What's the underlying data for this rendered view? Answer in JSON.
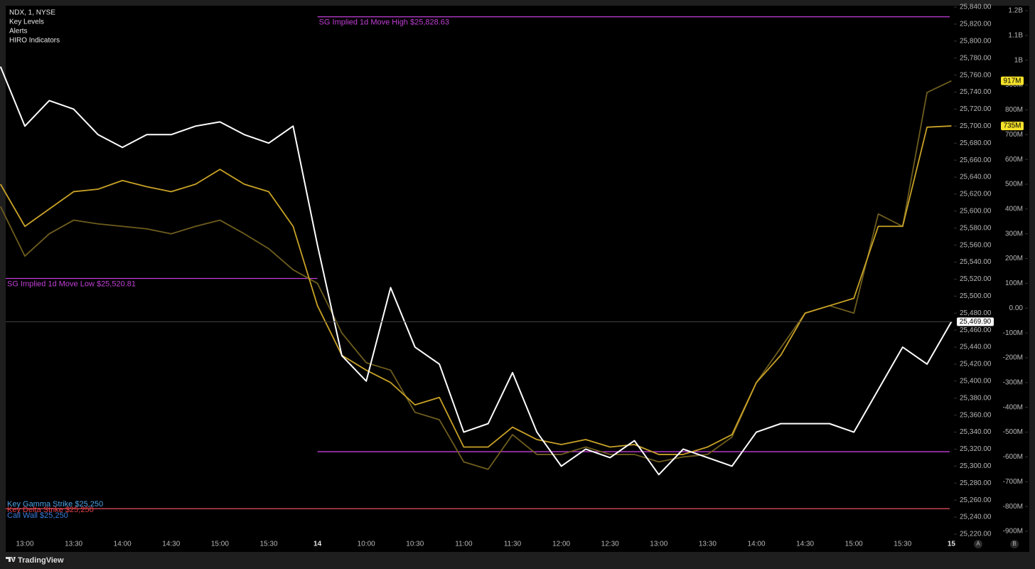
{
  "chart_data": {
    "type": "line",
    "legend_lines": [
      "NDX, 1, NYSE",
      "Key Levels",
      "Alerts",
      "HIRO Indicators"
    ],
    "categories": [
      null,
      "13:00",
      null,
      "13:30",
      null,
      "14:00",
      null,
      "14:30",
      null,
      "15:00",
      null,
      "15:30",
      null,
      "14",
      null,
      "10:00",
      null,
      "10:30",
      null,
      "11:00",
      null,
      "11:30",
      null,
      "12:00",
      null,
      "12:30",
      null,
      "13:00",
      null,
      "13:30",
      null,
      "14:00",
      null,
      "14:30",
      null,
      "15:00",
      null,
      "15:30",
      null,
      "15"
    ],
    "series": [
      {
        "color": "#ffffff",
        "values": [
          25770,
          25700,
          25730,
          25720,
          25690,
          25675,
          25690,
          25690,
          25700,
          25705,
          25690,
          25680,
          25700,
          25560,
          25430,
          25400,
          25510,
          25440,
          25420,
          25340,
          25350,
          25410,
          25340,
          25300,
          25320,
          25310,
          25330,
          25290,
          25320,
          25310,
          25300,
          25340,
          25350,
          25350,
          25350,
          25340,
          25390,
          25440,
          25420,
          25469.9
        ],
        "value_labels": [
          null,
          null,
          null,
          null,
          null,
          null,
          null,
          null,
          null,
          null,
          null,
          null,
          null,
          null,
          null,
          null,
          null,
          null,
          null,
          null,
          null,
          null,
          null,
          null,
          null,
          null,
          null,
          null,
          null,
          null,
          null,
          null,
          null,
          null,
          null,
          null,
          null,
          null,
          null,
          "25,469.90"
        ]
      },
      {
        "color": "#c9a227",
        "axis": "y2",
        "values": [
          500,
          330,
          400,
          470,
          480,
          515,
          490,
          470,
          500,
          560,
          500,
          470,
          330,
          10,
          -190,
          -250,
          -300,
          -390,
          -360,
          -560,
          -560,
          -480,
          -530,
          -550,
          -530,
          -560,
          -550,
          -590,
          -590,
          -560,
          -510,
          -300,
          -190,
          -20,
          10,
          40,
          330,
          330,
          730,
          735
        ],
        "value_labels": [
          null,
          null,
          null,
          null,
          null,
          null,
          null,
          null,
          null,
          null,
          null,
          null,
          null,
          null,
          null,
          null,
          null,
          null,
          null,
          null,
          null,
          null,
          null,
          null,
          null,
          null,
          null,
          null,
          null,
          null,
          null,
          null,
          null,
          null,
          null,
          null,
          null,
          null,
          null,
          "735M"
        ]
      },
      {
        "color": "#6e5d1e",
        "axis": "y2",
        "values": [
          410,
          210,
          300,
          355,
          340,
          330,
          320,
          300,
          330,
          355,
          300,
          240,
          155,
          100,
          -100,
          -220,
          -250,
          -420,
          -450,
          -620,
          -650,
          -510,
          -590,
          -590,
          -560,
          -590,
          -590,
          -620,
          -600,
          -590,
          -520,
          -300,
          -160,
          -20,
          10,
          -20,
          380,
          330,
          870,
          917
        ],
        "value_labels": [
          null,
          null,
          null,
          null,
          null,
          null,
          null,
          null,
          null,
          null,
          null,
          null,
          null,
          null,
          null,
          null,
          null,
          null,
          null,
          null,
          null,
          null,
          null,
          null,
          null,
          null,
          null,
          null,
          null,
          null,
          null,
          null,
          null,
          null,
          null,
          null,
          null,
          null,
          null,
          "917M"
        ]
      }
    ],
    "levels": [
      {
        "value": 25828.63,
        "label": "SG Implied 1d Move High $25,828.63",
        "color": "#c13fd6",
        "from": 13,
        "to": 39
      },
      {
        "value": 25520.81,
        "label": "SG Implied 1d Move Low $25,520.81",
        "color": "#c13fd6",
        "from": 0,
        "to": 13
      },
      {
        "value": 25317,
        "color": "#c13fd6",
        "from": 13,
        "to": 39
      },
      {
        "value": 25250,
        "label": "Key Gamma Strike $25,250",
        "color": "#4aa3e8",
        "from": 0,
        "to": 39
      },
      {
        "value": 25250,
        "label": "Key Delta Strike $25,250",
        "color": "#e0404a",
        "from": 0,
        "to": 39
      },
      {
        "value": 25250,
        "label": "Call Wall $25,250",
        "color": "#3b7ddd"
      }
    ],
    "ylim": [
      25220,
      25840
    ],
    "yticks": [
      {
        "value": 25840,
        "label": "25,840.00"
      },
      {
        "value": 25820,
        "label": "25,820.00"
      },
      {
        "value": 25800,
        "label": "25,800.00"
      },
      {
        "value": 25780,
        "label": "25,780.00"
      },
      {
        "value": 25760,
        "label": "25,760.00"
      },
      {
        "value": 25740,
        "label": "25,740.00"
      },
      {
        "value": 25720,
        "label": "25,720.00"
      },
      {
        "value": 25700,
        "label": "25,700.00"
      },
      {
        "value": 25680,
        "label": "25,680.00"
      },
      {
        "value": 25660,
        "label": "25,660.00"
      },
      {
        "value": 25640,
        "label": "25,640.00"
      },
      {
        "value": 25620,
        "label": "25,620.00"
      },
      {
        "value": 25600,
        "label": "25,600.00"
      },
      {
        "value": 25580,
        "label": "25,580.00"
      },
      {
        "value": 25560,
        "label": "25,560.00"
      },
      {
        "value": 25540,
        "label": "25,540.00"
      },
      {
        "value": 25520,
        "label": "25,520.00"
      },
      {
        "value": 25500,
        "label": "25,500.00"
      },
      {
        "value": 25480,
        "label": "25,480.00"
      },
      {
        "value": 25460,
        "label": "25,460.00"
      },
      {
        "value": 25440,
        "label": "25,440.00"
      },
      {
        "value": 25420,
        "label": "25,420.00"
      },
      {
        "value": 25400,
        "label": "25,400.00"
      },
      {
        "value": 25380,
        "label": "25,380.00"
      },
      {
        "value": 25360,
        "label": "25,360.00"
      },
      {
        "value": 25340,
        "label": "25,340.00"
      },
      {
        "value": 25320,
        "label": "25,320.00"
      },
      {
        "value": 25300,
        "label": "25,300.00"
      },
      {
        "value": 25280,
        "label": "25,280.00"
      },
      {
        "value": 25260,
        "label": "25,260.00"
      },
      {
        "value": 25240,
        "label": "25,240.00"
      },
      {
        "value": 25220,
        "label": "25,220.00"
      }
    ],
    "y2lim": [
      -900,
      1200
    ],
    "y2ticks": [
      {
        "value": 1200,
        "label": "1.2B"
      },
      {
        "value": 1100,
        "label": "1.1B"
      },
      {
        "value": 1000,
        "label": "1B"
      },
      {
        "value": 900,
        "label": "900M"
      },
      {
        "value": 800,
        "label": "800M"
      },
      {
        "value": 700,
        "label": "700M"
      },
      {
        "value": 600,
        "label": "600M"
      },
      {
        "value": 500,
        "label": "500M"
      },
      {
        "value": 400,
        "label": "400M"
      },
      {
        "value": 300,
        "label": "300M"
      },
      {
        "value": 200,
        "label": "200M"
      },
      {
        "value": 100,
        "label": "100M"
      },
      {
        "value": 0,
        "label": "0.00"
      },
      {
        "value": -100,
        "label": "-100M"
      },
      {
        "value": -200,
        "label": "-200M"
      },
      {
        "value": -300,
        "label": "-300M"
      },
      {
        "value": -400,
        "label": "-400M"
      },
      {
        "value": -500,
        "label": "-500M"
      },
      {
        "value": -600,
        "label": "-600M"
      },
      {
        "value": -700,
        "label": "-700M"
      },
      {
        "value": -800,
        "label": "-800M"
      },
      {
        "value": -900,
        "label": "-900M"
      }
    ],
    "axis_buttons": [
      "A",
      "B"
    ],
    "brand": "TradingView"
  }
}
